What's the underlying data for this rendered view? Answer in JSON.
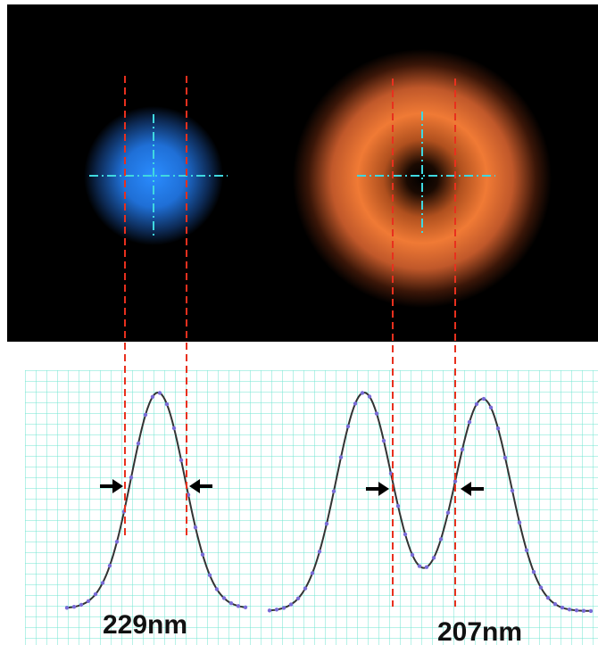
{
  "labels": {
    "left_width": "229nm",
    "right_width": "207nm"
  }
}
